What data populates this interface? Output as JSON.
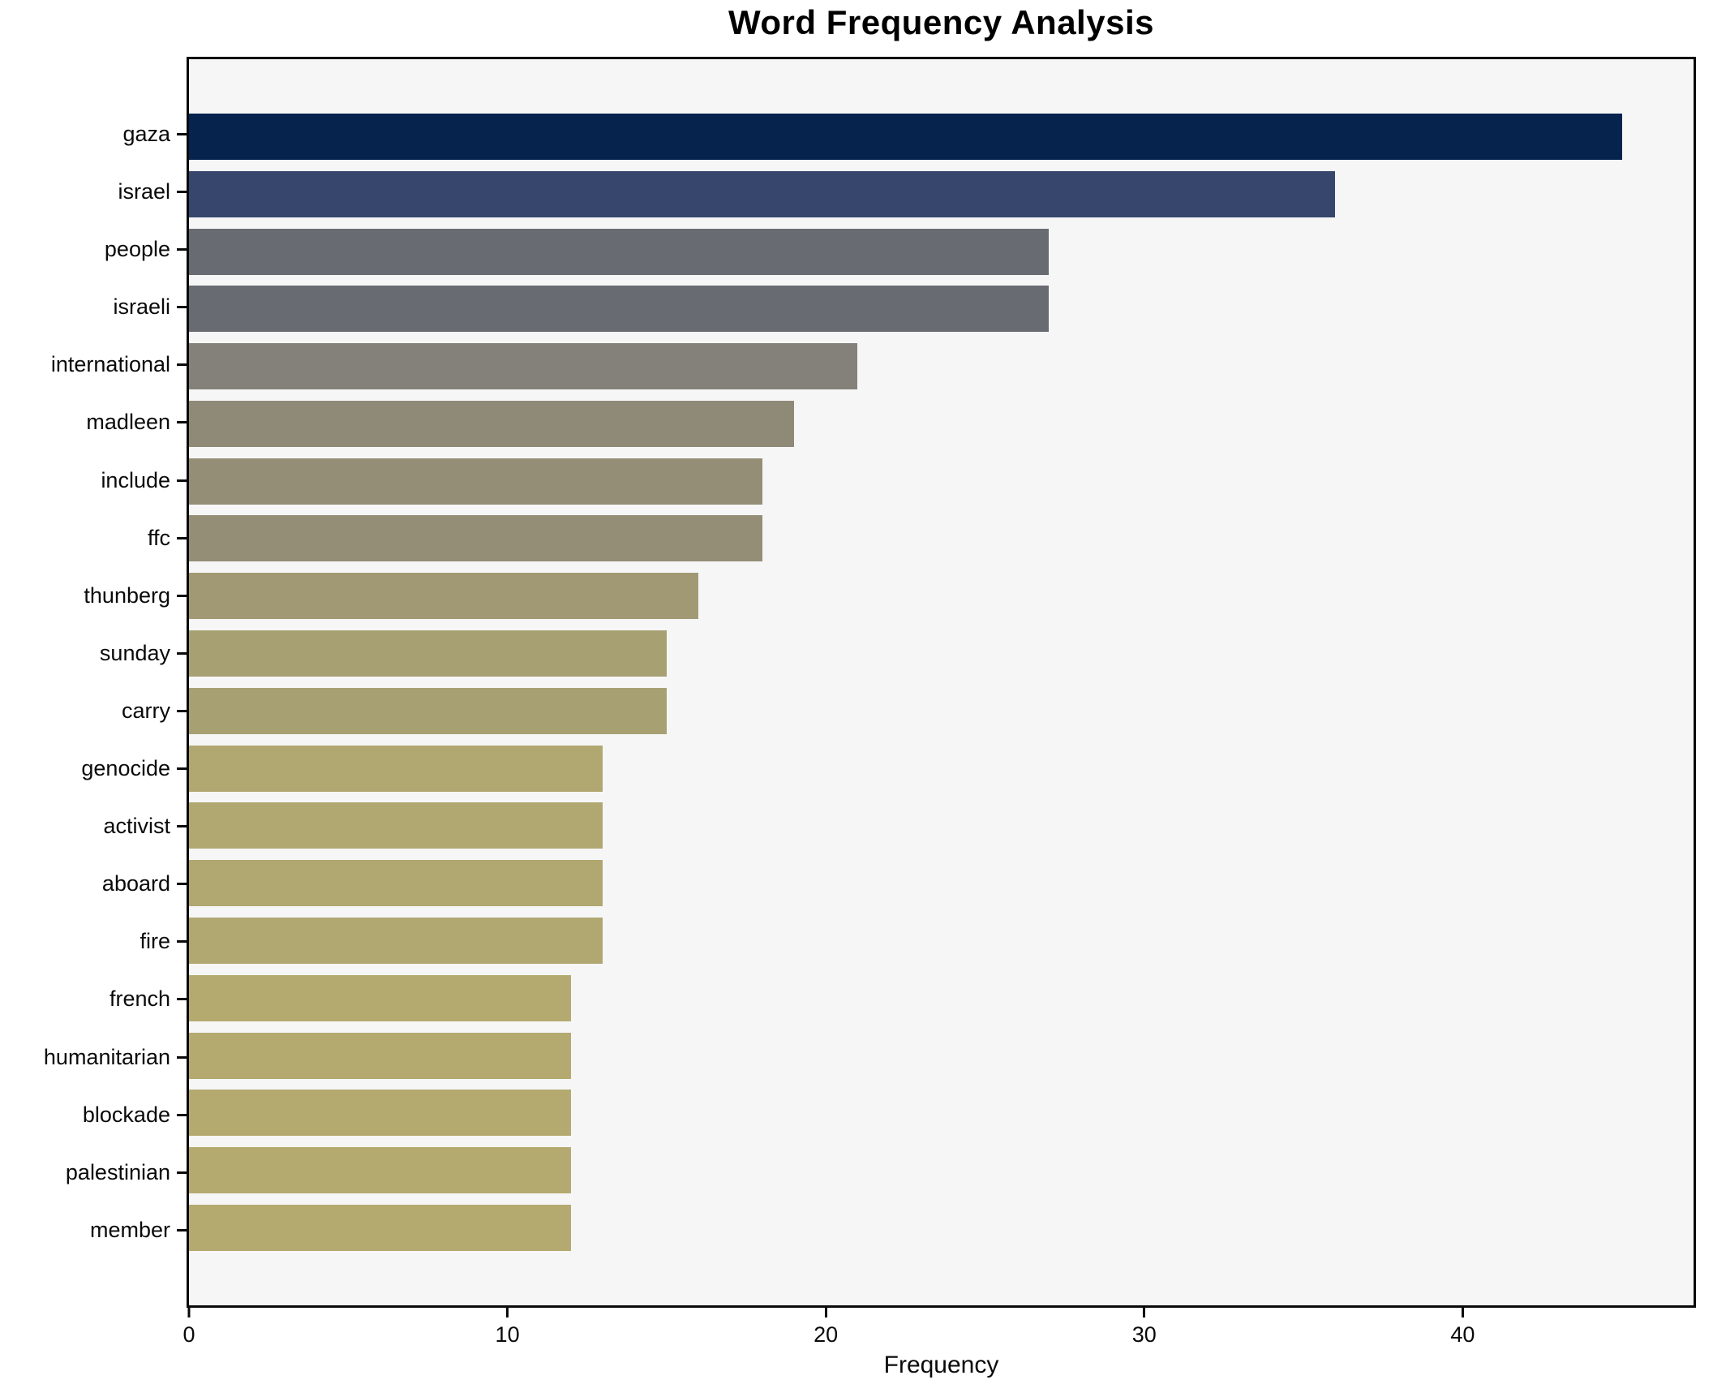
{
  "chart_data": {
    "type": "bar",
    "orientation": "horizontal",
    "title": "Word Frequency Analysis",
    "xlabel": "Frequency",
    "ylabel": "",
    "categories": [
      "gaza",
      "israel",
      "people",
      "israeli",
      "international",
      "madleen",
      "include",
      "ffc",
      "thunberg",
      "sunday",
      "carry",
      "genocide",
      "activist",
      "aboard",
      "fire",
      "french",
      "humanitarian",
      "blockade",
      "palestinian",
      "member"
    ],
    "values": [
      45,
      36,
      27,
      27,
      21,
      19,
      18,
      18,
      16,
      15,
      15,
      13,
      13,
      13,
      13,
      12,
      12,
      12,
      12,
      12
    ],
    "bar_colors": [
      "#06234e",
      "#36466d",
      "#696b73",
      "#696b73",
      "#84817b",
      "#8f8977",
      "#948e76",
      "#948e76",
      "#a19973",
      "#a7a072",
      "#a7a072",
      "#b0a771",
      "#b0a771",
      "#b0a771",
      "#b0a771",
      "#b4aa6f",
      "#b4aa6f",
      "#b4aa6f",
      "#b4aa6f",
      "#b4aa6f"
    ],
    "xlim": [
      0,
      47.25
    ],
    "xticks": [
      0,
      10,
      20,
      30,
      40
    ],
    "grid": false,
    "legend": "none",
    "plot_background": "#f6f6f7",
    "figure_background": "#ffffff",
    "spine_color": "#0a0a0a"
  }
}
